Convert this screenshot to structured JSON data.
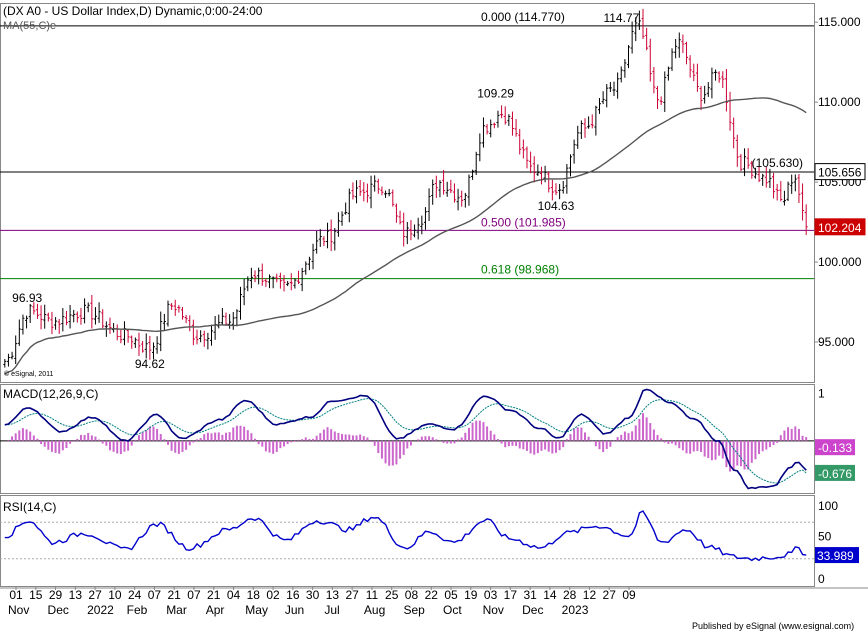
{
  "header": {
    "title": "(DX A0 - US Dollar Index,D) Dynamic,0:00-24:00",
    "ma_label": "MA(55,C)e",
    "copyright": "© eSignal, 2011"
  },
  "footer": {
    "publisher": "Published by eSignal (www.esignal.com)"
  },
  "colors": {
    "up_bar": "#000000",
    "down_bar": "#cc0033",
    "ma_line": "#555555",
    "fib_0_line": "#000000",
    "fib_500_line": "#800080",
    "fib_618_line": "#008000",
    "macd_line": "#000080",
    "macd_signal": "#008080",
    "macd_hist": "#cc66cc",
    "rsi_line": "#0000cc",
    "price_tag_bg": "#cc0000",
    "macd_tag_bg": "#cc44cc",
    "signal_tag_bg": "#339966",
    "rsi_tag_bg": "#0000cc"
  },
  "chart_data": [
    {
      "type": "candlestick",
      "symbol": "DX A0",
      "ylim": [
        92.5,
        116.2
      ],
      "y_ticks": [
        "115.000",
        "110.000",
        "105.000",
        "100.000",
        "95.000"
      ],
      "y_tick_values": [
        115,
        110,
        105,
        100,
        95
      ],
      "price_anchors": [
        {
          "t": 0,
          "v": 93.8
        },
        {
          "t": 0.03,
          "v": 96.93
        },
        {
          "t": 0.06,
          "v": 96.3
        },
        {
          "t": 0.1,
          "v": 96.9
        },
        {
          "t": 0.15,
          "v": 95.4
        },
        {
          "t": 0.18,
          "v": 94.62
        },
        {
          "t": 0.21,
          "v": 97.3
        },
        {
          "t": 0.24,
          "v": 95.4
        },
        {
          "t": 0.28,
          "v": 96.3
        },
        {
          "t": 0.31,
          "v": 99.3
        },
        {
          "t": 0.35,
          "v": 98.4
        },
        {
          "t": 0.4,
          "v": 101.5
        },
        {
          "t": 0.44,
          "v": 104.3
        },
        {
          "t": 0.47,
          "v": 104.8
        },
        {
          "t": 0.5,
          "v": 101.8
        },
        {
          "t": 0.52,
          "v": 102.8
        },
        {
          "t": 0.54,
          "v": 105.0
        },
        {
          "t": 0.57,
          "v": 104.1
        },
        {
          "t": 0.6,
          "v": 108.5
        },
        {
          "t": 0.62,
          "v": 109.29
        },
        {
          "t": 0.66,
          "v": 105.8
        },
        {
          "t": 0.69,
          "v": 104.63
        },
        {
          "t": 0.72,
          "v": 108.3
        },
        {
          "t": 0.76,
          "v": 110.8
        },
        {
          "t": 0.79,
          "v": 114.77
        },
        {
          "t": 0.815,
          "v": 110.2
        },
        {
          "t": 0.84,
          "v": 113.7
        },
        {
          "t": 0.87,
          "v": 110.5
        },
        {
          "t": 0.89,
          "v": 111.8
        },
        {
          "t": 0.92,
          "v": 106.2
        },
        {
          "t": 0.95,
          "v": 105.2
        },
        {
          "t": 0.97,
          "v": 103.8
        },
        {
          "t": 0.985,
          "v": 105.4
        },
        {
          "t": 1.0,
          "v": 102.204
        }
      ],
      "bar_count": 222,
      "ma_period": 55,
      "annotations": [
        {
          "text": "96.93",
          "value": 96.93,
          "at": 0.03
        },
        {
          "text": "94.62",
          "value": 94.62,
          "at": 0.18
        },
        {
          "text": "109.29",
          "value": 109.29,
          "at": 0.62
        },
        {
          "text": "104.63",
          "value": 104.63,
          "at": 0.69
        },
        {
          "text": "114.77",
          "value": 114.77,
          "at": 0.79
        }
      ],
      "fib_levels": [
        {
          "label": "0.000 (114.770)",
          "value": 114.77,
          "color": "#000000"
        },
        {
          "label": "(105.630)",
          "value": 105.63,
          "color": "#000000"
        },
        {
          "label": "0.500 (101.985)",
          "value": 101.985,
          "color": "#800080"
        },
        {
          "label": "0.618 (98.968)",
          "value": 98.968,
          "color": "#008000"
        }
      ],
      "right_tags": [
        {
          "text": "105.656",
          "value": 105.656,
          "style": "gray"
        },
        {
          "text": "102.204",
          "value": 102.204,
          "style": "red"
        }
      ]
    },
    {
      "type": "macd",
      "label": "MACD(12,26,9,C)",
      "ylim": [
        -1.1,
        1.2
      ],
      "y_tick_labels": [
        "1"
      ],
      "y_tick_values": [
        1
      ],
      "macd_anchors": [
        {
          "t": 0,
          "v": 0.35
        },
        {
          "t": 0.03,
          "v": 0.7
        },
        {
          "t": 0.07,
          "v": 0.2
        },
        {
          "t": 0.11,
          "v": 0.5
        },
        {
          "t": 0.15,
          "v": 0.0
        },
        {
          "t": 0.19,
          "v": 0.55
        },
        {
          "t": 0.22,
          "v": 0.05
        },
        {
          "t": 0.27,
          "v": 0.45
        },
        {
          "t": 0.3,
          "v": 0.85
        },
        {
          "t": 0.34,
          "v": 0.35
        },
        {
          "t": 0.38,
          "v": 0.5
        },
        {
          "t": 0.41,
          "v": 0.85
        },
        {
          "t": 0.45,
          "v": 0.95
        },
        {
          "t": 0.49,
          "v": 0.05
        },
        {
          "t": 0.53,
          "v": 0.35
        },
        {
          "t": 0.56,
          "v": 0.25
        },
        {
          "t": 0.6,
          "v": 0.95
        },
        {
          "t": 0.63,
          "v": 0.65
        },
        {
          "t": 0.67,
          "v": 0.25
        },
        {
          "t": 0.69,
          "v": 0.05
        },
        {
          "t": 0.72,
          "v": 0.55
        },
        {
          "t": 0.75,
          "v": 0.15
        },
        {
          "t": 0.78,
          "v": 0.5
        },
        {
          "t": 0.8,
          "v": 1.1
        },
        {
          "t": 0.83,
          "v": 0.8
        },
        {
          "t": 0.86,
          "v": 0.45
        },
        {
          "t": 0.89,
          "v": 0.0
        },
        {
          "t": 0.91,
          "v": -0.6
        },
        {
          "t": 0.93,
          "v": -1.0
        },
        {
          "t": 0.96,
          "v": -0.95
        },
        {
          "t": 0.98,
          "v": -0.55
        },
        {
          "t": 0.99,
          "v": -0.45
        },
        {
          "t": 1.0,
          "v": -0.6
        }
      ],
      "signal_value": -0.676,
      "hist_value": -0.133,
      "right_tags": [
        {
          "text": "-0.133",
          "value": -0.133,
          "style": "magenta"
        },
        {
          "text": "-0.676",
          "value": -0.676,
          "style": "green"
        }
      ]
    },
    {
      "type": "rsi",
      "label": "RSI(14,C)",
      "ylim": [
        0,
        100
      ],
      "y_tick_labels": [
        "100",
        "50",
        "0"
      ],
      "y_tick_values": [
        100,
        50,
        0
      ],
      "overbought": 70,
      "oversold": 30,
      "rsi_anchors": [
        {
          "t": 0,
          "v": 55
        },
        {
          "t": 0.03,
          "v": 72
        },
        {
          "t": 0.06,
          "v": 48
        },
        {
          "t": 0.1,
          "v": 58
        },
        {
          "t": 0.15,
          "v": 40
        },
        {
          "t": 0.19,
          "v": 68
        },
        {
          "t": 0.23,
          "v": 42
        },
        {
          "t": 0.28,
          "v": 62
        },
        {
          "t": 0.31,
          "v": 75
        },
        {
          "t": 0.35,
          "v": 50
        },
        {
          "t": 0.39,
          "v": 72
        },
        {
          "t": 0.43,
          "v": 62
        },
        {
          "t": 0.46,
          "v": 76
        },
        {
          "t": 0.5,
          "v": 42
        },
        {
          "t": 0.53,
          "v": 60
        },
        {
          "t": 0.56,
          "v": 48
        },
        {
          "t": 0.6,
          "v": 72
        },
        {
          "t": 0.63,
          "v": 52
        },
        {
          "t": 0.67,
          "v": 42
        },
        {
          "t": 0.7,
          "v": 58
        },
        {
          "t": 0.74,
          "v": 66
        },
        {
          "t": 0.78,
          "v": 55
        },
        {
          "t": 0.795,
          "v": 80
        },
        {
          "t": 0.82,
          "v": 48
        },
        {
          "t": 0.85,
          "v": 62
        },
        {
          "t": 0.88,
          "v": 42
        },
        {
          "t": 0.91,
          "v": 32
        },
        {
          "t": 0.93,
          "v": 30
        },
        {
          "t": 0.96,
          "v": 32
        },
        {
          "t": 0.98,
          "v": 35
        },
        {
          "t": 0.99,
          "v": 42
        },
        {
          "t": 1.0,
          "v": 33.989
        }
      ],
      "right_tags": [
        {
          "text": "33.989",
          "value": 33.989,
          "style": "blue"
        }
      ]
    }
  ],
  "x_axis": {
    "day_labels": [
      "01",
      "15",
      "29",
      "13",
      "27",
      "10",
      "24",
      "07",
      "21",
      "07",
      "21",
      "04",
      "18",
      "02",
      "16",
      "30",
      "13",
      "27",
      "11",
      "25",
      "08",
      "22",
      "05",
      "19",
      "03",
      "17",
      "31",
      "14",
      "28",
      "12",
      "27",
      "09"
    ],
    "month_labels": [
      {
        "text": "Nov",
        "index": 0
      },
      {
        "text": "Dec",
        "index": 2
      },
      {
        "text": "2022",
        "index": 4
      },
      {
        "text": "Feb",
        "index": 6
      },
      {
        "text": "Mar",
        "index": 8
      },
      {
        "text": "Apr",
        "index": 10
      },
      {
        "text": "May",
        "index": 12
      },
      {
        "text": "Jun",
        "index": 14
      },
      {
        "text": "Jul",
        "index": 16
      },
      {
        "text": "Aug",
        "index": 18
      },
      {
        "text": "Sep",
        "index": 20
      },
      {
        "text": "Oct",
        "index": 22
      },
      {
        "text": "Nov",
        "index": 24
      },
      {
        "text": "Dec",
        "index": 26
      },
      {
        "text": "2023",
        "index": 28
      }
    ]
  }
}
